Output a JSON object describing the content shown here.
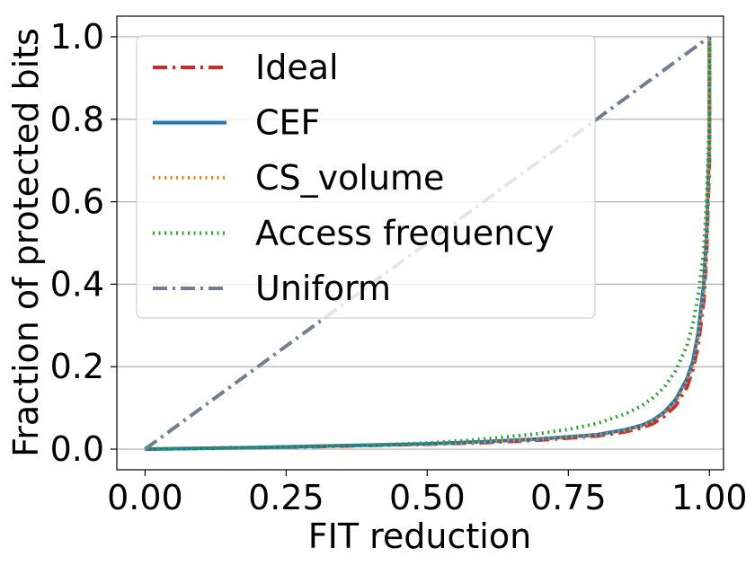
{
  "chart_data": {
    "type": "line",
    "title": "",
    "xlabel": "FIT reduction",
    "ylabel": "Fraction of protected bits",
    "xlim": [
      -0.05,
      1.025
    ],
    "ylim": [
      -0.05,
      1.05
    ],
    "xticks": [
      0.0,
      0.25,
      0.5,
      0.75,
      1.0
    ],
    "xtick_labels": [
      "0.00",
      "0.25",
      "0.50",
      "0.75",
      "1.00"
    ],
    "yticks": [
      0.0,
      0.2,
      0.4,
      0.6,
      0.8,
      1.0
    ],
    "ytick_labels": [
      "0.0",
      "0.2",
      "0.4",
      "0.6",
      "0.8",
      "1.0"
    ],
    "grid": "horizontal",
    "legend_position": "upper-left",
    "series": [
      {
        "name": "Ideal",
        "color": "#d62728",
        "style": "dashdot",
        "x": [
          0.0,
          0.1,
          0.2,
          0.3,
          0.4,
          0.5,
          0.6,
          0.7,
          0.8,
          0.85,
          0.88,
          0.9,
          0.92,
          0.94,
          0.96,
          0.97,
          0.98,
          0.99,
          0.995,
          1.0,
          1.0
        ],
        "y": [
          0.0,
          0.002,
          0.004,
          0.006,
          0.009,
          0.012,
          0.016,
          0.022,
          0.032,
          0.042,
          0.052,
          0.062,
          0.08,
          0.105,
          0.15,
          0.19,
          0.25,
          0.36,
          0.48,
          0.7,
          1.0
        ]
      },
      {
        "name": "CEF",
        "color": "#1f77b4",
        "style": "solid",
        "x": [
          0.0,
          0.1,
          0.2,
          0.3,
          0.4,
          0.5,
          0.6,
          0.7,
          0.8,
          0.85,
          0.88,
          0.9,
          0.92,
          0.94,
          0.96,
          0.97,
          0.98,
          0.99,
          0.995,
          1.0,
          1.0
        ],
        "y": [
          0.0,
          0.002,
          0.004,
          0.007,
          0.01,
          0.013,
          0.018,
          0.025,
          0.035,
          0.047,
          0.058,
          0.07,
          0.09,
          0.12,
          0.17,
          0.21,
          0.28,
          0.4,
          0.52,
          0.75,
          1.0
        ]
      },
      {
        "name": "CS_volume",
        "color": "#ff7f0e",
        "style": "dotted",
        "x": [
          0.0,
          0.1,
          0.2,
          0.3,
          0.4,
          0.5,
          0.6,
          0.7,
          0.8,
          0.85,
          0.88,
          0.9,
          0.92,
          0.94,
          0.96,
          0.97,
          0.98,
          0.99,
          0.995,
          1.0,
          1.0
        ],
        "y": [
          0.0,
          0.002,
          0.004,
          0.007,
          0.01,
          0.013,
          0.018,
          0.024,
          0.034,
          0.045,
          0.056,
          0.068,
          0.087,
          0.115,
          0.165,
          0.2,
          0.27,
          0.38,
          0.5,
          0.72,
          1.0
        ]
      },
      {
        "name": "Access frequency",
        "color": "#2ca02c",
        "style": "dotted",
        "x": [
          0.0,
          0.1,
          0.2,
          0.3,
          0.4,
          0.5,
          0.6,
          0.7,
          0.75,
          0.8,
          0.85,
          0.88,
          0.9,
          0.92,
          0.94,
          0.96,
          0.97,
          0.98,
          0.99,
          0.995,
          1.0,
          1.0
        ],
        "y": [
          0.0,
          0.002,
          0.004,
          0.007,
          0.01,
          0.015,
          0.024,
          0.038,
          0.048,
          0.062,
          0.085,
          0.105,
          0.125,
          0.15,
          0.19,
          0.25,
          0.3,
          0.37,
          0.48,
          0.6,
          0.8,
          1.0
        ]
      },
      {
        "name": "Uniform",
        "color": "#708090",
        "style": "dashdot",
        "x": [
          0.0,
          1.0
        ],
        "y": [
          0.0,
          1.0
        ]
      }
    ]
  }
}
